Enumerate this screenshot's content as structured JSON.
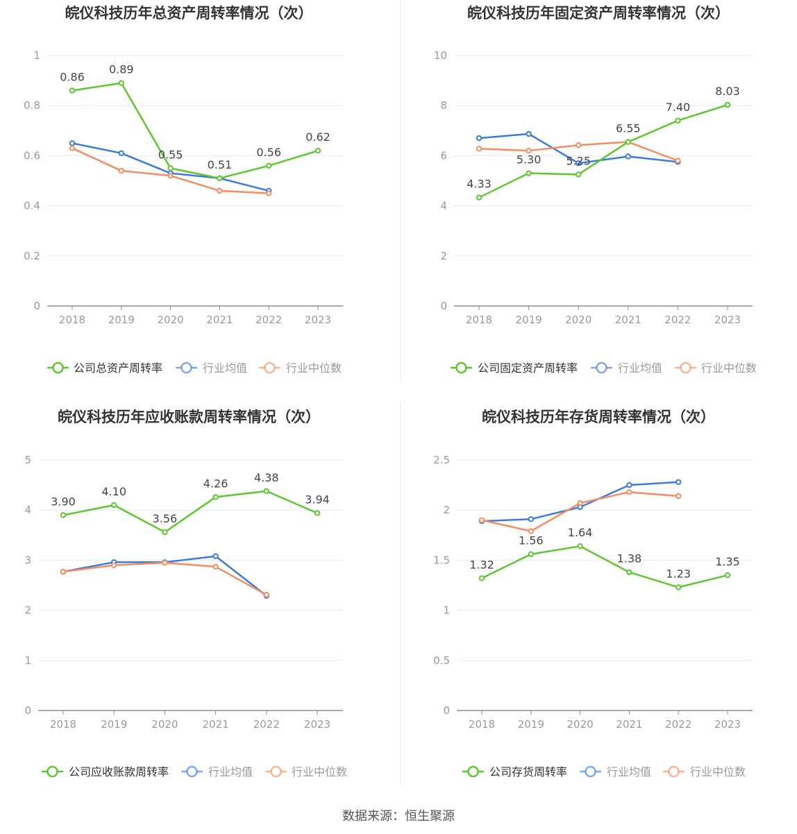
{
  "charts": [
    {
      "title": "皖仪科技历年总资产周转率情况（次）",
      "type": "line",
      "categories": [
        "2018",
        "2019",
        "2020",
        "2021",
        "2022",
        "2023"
      ],
      "yticks": [
        "0",
        "0.2",
        "0.4",
        "0.6",
        "0.8",
        "1"
      ],
      "ylim": [
        0,
        1
      ],
      "series": [
        {
          "name": "公司总资产周转率",
          "color": "#5cc62e",
          "values": [
            0.86,
            0.89,
            0.55,
            0.51,
            0.56,
            0.62
          ],
          "labels": [
            "0.86",
            "0.89",
            "0.55",
            "0.51",
            "0.56",
            "0.62"
          ]
        },
        {
          "name": "行业均值",
          "color": "#3d7ae0",
          "values": [
            0.65,
            0.61,
            0.53,
            0.51,
            0.46,
            null
          ]
        },
        {
          "name": "行业中位数",
          "color": "#f58c5f",
          "values": [
            0.63,
            0.54,
            0.52,
            0.46,
            0.45,
            null
          ]
        }
      ]
    },
    {
      "title": "皖仪科技历年固定资产周转率情况（次）",
      "type": "line",
      "categories": [
        "2018",
        "2019",
        "2020",
        "2021",
        "2022",
        "2023"
      ],
      "yticks": [
        "0",
        "2",
        "4",
        "6",
        "8",
        "10"
      ],
      "ylim": [
        0,
        10
      ],
      "series": [
        {
          "name": "公司固定资产周转率",
          "color": "#5cc62e",
          "values": [
            4.33,
            5.3,
            5.25,
            6.55,
            7.4,
            8.03
          ],
          "labels": [
            "4.33",
            "5.30",
            "5.25",
            "6.55",
            "7.40",
            "8.03"
          ]
        },
        {
          "name": "行业均值",
          "color": "#3d7ae0",
          "values": [
            6.7,
            6.87,
            5.7,
            5.97,
            5.75,
            null
          ]
        },
        {
          "name": "行业中位数",
          "color": "#f58c5f",
          "values": [
            6.28,
            6.2,
            6.42,
            6.55,
            5.8,
            null
          ]
        }
      ]
    },
    {
      "title": "皖仪科技历年应收账款周转率情况（次）",
      "type": "line",
      "categories": [
        "2018",
        "2019",
        "2020",
        "2021",
        "2022",
        "2023"
      ],
      "yticks": [
        "0",
        "1",
        "2",
        "3",
        "4",
        "5"
      ],
      "ylim": [
        0,
        5
      ],
      "series": [
        {
          "name": "公司应收账款周转率",
          "color": "#5cc62e",
          "values": [
            3.9,
            4.1,
            3.56,
            4.26,
            4.38,
            3.94
          ],
          "labels": [
            "3.90",
            "4.10",
            "3.56",
            "4.26",
            "4.38",
            "3.94"
          ]
        },
        {
          "name": "行业均值",
          "color": "#3d7ae0",
          "values": [
            2.77,
            2.96,
            2.96,
            3.08,
            2.29,
            null
          ]
        },
        {
          "name": "行业中位数",
          "color": "#f58c5f",
          "values": [
            2.77,
            2.9,
            2.95,
            2.87,
            2.31,
            null
          ]
        }
      ]
    },
    {
      "title": "皖仪科技历年存货周转率情况（次）",
      "type": "line",
      "categories": [
        "2018",
        "2019",
        "2020",
        "2021",
        "2022",
        "2023"
      ],
      "yticks": [
        "0",
        "0.5",
        "1",
        "1.5",
        "2",
        "2.5"
      ],
      "ylim": [
        0,
        2.5
      ],
      "series": [
        {
          "name": "公司存货周转率",
          "color": "#5cc62e",
          "values": [
            1.32,
            1.56,
            1.64,
            1.38,
            1.23,
            1.35
          ],
          "labels": [
            "1.32",
            "1.56",
            "1.64",
            "1.38",
            "1.23",
            "1.35"
          ]
        },
        {
          "name": "行业均值",
          "color": "#3d7ae0",
          "values": [
            1.89,
            1.91,
            2.03,
            2.25,
            2.28,
            null
          ]
        },
        {
          "name": "行业中位数",
          "color": "#f58c5f",
          "values": [
            1.9,
            1.79,
            2.07,
            2.18,
            2.14,
            null
          ]
        }
      ]
    }
  ],
  "source": "数据来源：恒生聚源"
}
